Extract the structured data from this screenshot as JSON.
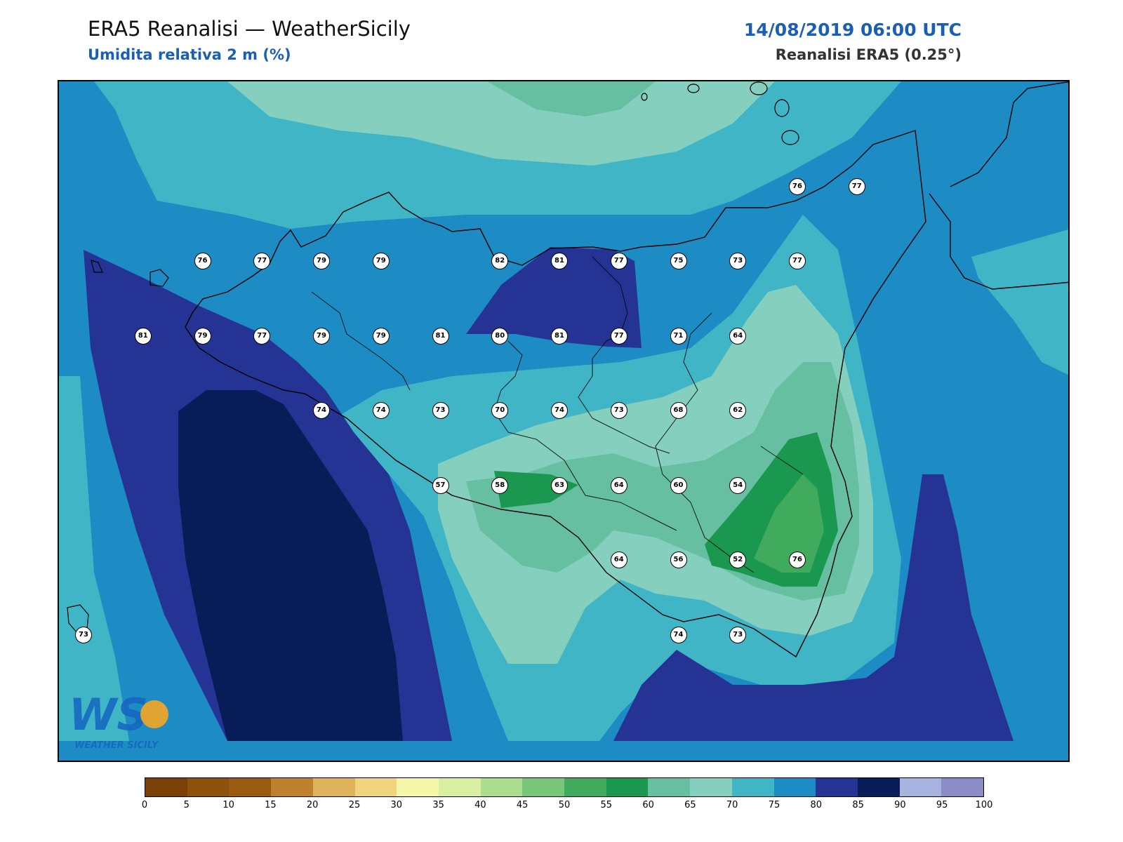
{
  "header": {
    "title": "ERA5 Reanalisi — WeatherSicily",
    "subtitle": "Umidita relativa 2 m (%)",
    "datetime": "14/08/2019 06:00 UTC",
    "source": "Reanalisi ERA5 (0.25°)"
  },
  "map": {
    "variable_unit": "%",
    "fill_colors": {
      "c55_60": "#1a9850",
      "c50_55": "#41ab5d",
      "c60_65": "#66bfa0",
      "c65_70": "#84cfbd",
      "c70_75": "#40b5c6",
      "c75_80": "#1e8cc4",
      "c80_85": "#253494",
      "c85_90": "#081d58"
    },
    "stations": [
      {
        "value": "76",
        "lon": 12.5,
        "lat": 38.25
      },
      {
        "value": "77",
        "lon": 12.75,
        "lat": 38.25
      },
      {
        "value": "79",
        "lon": 13.0,
        "lat": 38.25
      },
      {
        "value": "79",
        "lon": 13.25,
        "lat": 38.25
      },
      {
        "value": "82",
        "lon": 13.75,
        "lat": 38.25
      },
      {
        "value": "81",
        "lon": 14.0,
        "lat": 38.25
      },
      {
        "value": "77",
        "lon": 14.25,
        "lat": 38.25
      },
      {
        "value": "75",
        "lon": 14.5,
        "lat": 38.25
      },
      {
        "value": "73",
        "lon": 14.75,
        "lat": 38.25
      },
      {
        "value": "77",
        "lon": 15.0,
        "lat": 38.25
      },
      {
        "value": "76",
        "lon": 15.0,
        "lat": 38.5
      },
      {
        "value": "77",
        "lon": 15.25,
        "lat": 38.5
      },
      {
        "value": "81",
        "lon": 12.25,
        "lat": 38.0
      },
      {
        "value": "79",
        "lon": 12.5,
        "lat": 38.0
      },
      {
        "value": "77",
        "lon": 12.75,
        "lat": 38.0
      },
      {
        "value": "79",
        "lon": 13.0,
        "lat": 38.0
      },
      {
        "value": "79",
        "lon": 13.25,
        "lat": 38.0
      },
      {
        "value": "81",
        "lon": 13.5,
        "lat": 38.0
      },
      {
        "value": "80",
        "lon": 13.75,
        "lat": 38.0
      },
      {
        "value": "81",
        "lon": 14.0,
        "lat": 38.0
      },
      {
        "value": "77",
        "lon": 14.25,
        "lat": 38.0
      },
      {
        "value": "71",
        "lon": 14.5,
        "lat": 38.0
      },
      {
        "value": "64",
        "lon": 14.75,
        "lat": 38.0
      },
      {
        "value": "74",
        "lon": 13.0,
        "lat": 37.75
      },
      {
        "value": "74",
        "lon": 13.25,
        "lat": 37.75
      },
      {
        "value": "73",
        "lon": 13.5,
        "lat": 37.75
      },
      {
        "value": "70",
        "lon": 13.75,
        "lat": 37.75
      },
      {
        "value": "74",
        "lon": 14.0,
        "lat": 37.75
      },
      {
        "value": "73",
        "lon": 14.25,
        "lat": 37.75
      },
      {
        "value": "68",
        "lon": 14.5,
        "lat": 37.75
      },
      {
        "value": "62",
        "lon": 14.75,
        "lat": 37.75
      },
      {
        "value": "57",
        "lon": 13.5,
        "lat": 37.5
      },
      {
        "value": "58",
        "lon": 13.75,
        "lat": 37.5
      },
      {
        "value": "63",
        "lon": 14.0,
        "lat": 37.5
      },
      {
        "value": "64",
        "lon": 14.25,
        "lat": 37.5
      },
      {
        "value": "60",
        "lon": 14.5,
        "lat": 37.5
      },
      {
        "value": "54",
        "lon": 14.75,
        "lat": 37.5
      },
      {
        "value": "64",
        "lon": 14.25,
        "lat": 37.25
      },
      {
        "value": "56",
        "lon": 14.5,
        "lat": 37.25
      },
      {
        "value": "52",
        "lon": 14.75,
        "lat": 37.25
      },
      {
        "value": "76",
        "lon": 15.0,
        "lat": 37.25
      },
      {
        "value": "73",
        "lon": 12.0,
        "lat": 37.0
      },
      {
        "value": "74",
        "lon": 14.5,
        "lat": 37.0
      },
      {
        "value": "73",
        "lon": 14.75,
        "lat": 37.0
      }
    ]
  },
  "colorbar": {
    "levels": [
      "0",
      "5",
      "10",
      "15",
      "20",
      "25",
      "30",
      "35",
      "40",
      "45",
      "50",
      "55",
      "60",
      "65",
      "70",
      "75",
      "80",
      "85",
      "90",
      "95",
      "100"
    ],
    "colors": [
      "#7a4006",
      "#8c510a",
      "#9a5a10",
      "#bf812d",
      "#dfb25c",
      "#f0d57e",
      "#f6f6a8",
      "#d9f0a3",
      "#addd8e",
      "#78c679",
      "#41ab5d",
      "#1a9850",
      "#66bfa0",
      "#84cfbd",
      "#40b5c6",
      "#1e8cc4",
      "#253494",
      "#081d58",
      "#a8b4e0",
      "#8c8cc8"
    ]
  },
  "logo": {
    "text": "WEATHER SICILY",
    "letters": "WS"
  }
}
